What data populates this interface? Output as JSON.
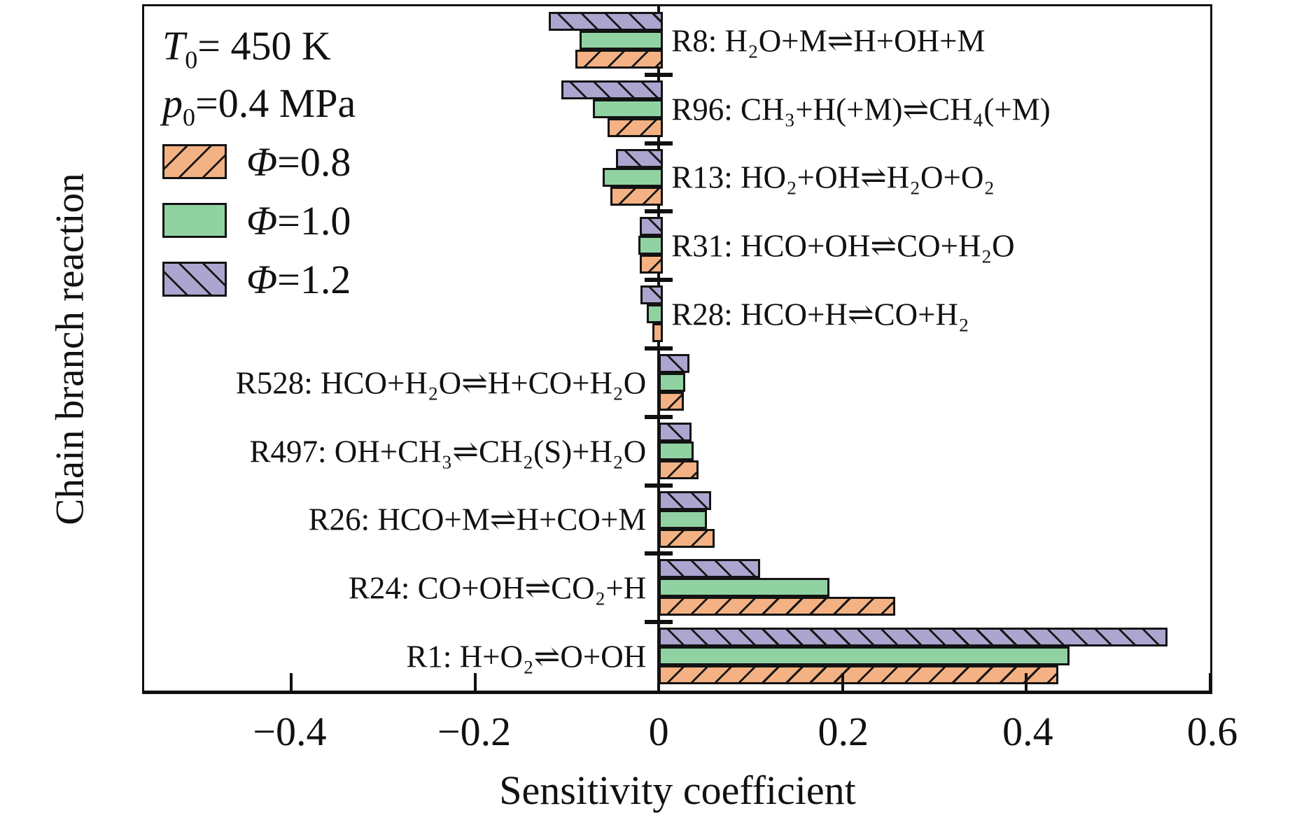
{
  "figure": {
    "background": "#ffffff",
    "frame_color": "#111111"
  },
  "legend": {
    "conditions": [
      {
        "sym": "T",
        "sub": "0",
        "rest": "= 450 K"
      },
      {
        "sym": "p",
        "sub": "0",
        "rest": "=0.4 MPa"
      }
    ]
  },
  "chart_data": {
    "type": "bar",
    "orientation": "horizontal",
    "title": "",
    "xlabel": "Sensitivity coefficient",
    "ylabel": "Chain branch reaction",
    "xlim": [
      -0.56,
      0.6
    ],
    "grid": false,
    "legend_position": "upper-left-inside",
    "zero_line": true,
    "x_axis_ticks": [
      {
        "value": -0.4,
        "label": "−0.4"
      },
      {
        "value": -0.2,
        "label": "−0.2"
      },
      {
        "value": 0,
        "label": "0"
      },
      {
        "value": 0.2,
        "label": "0.2"
      },
      {
        "value": 0.4,
        "label": "0.4"
      },
      {
        "value": 0.6,
        "label": "0.6"
      }
    ],
    "categories": [
      {
        "id": "R8",
        "label": "R8: H₂O+M⇌H+OH+M",
        "label_side": "right"
      },
      {
        "id": "R96",
        "label": "R96: CH₃+H(+M)⇌CH₄(+M)",
        "label_side": "right"
      },
      {
        "id": "R13",
        "label": "R13: HO₂+OH⇌H₂O+O₂",
        "label_side": "right"
      },
      {
        "id": "R31",
        "label": "R31: HCO+OH⇌CO+H₂O",
        "label_side": "right"
      },
      {
        "id": "R28",
        "label": "R28: HCO+H⇌CO+H₂",
        "label_side": "right"
      },
      {
        "id": "R528",
        "label": "R528: HCO+H₂O⇌H+CO+H₂O",
        "label_side": "left"
      },
      {
        "id": "R497",
        "label": "R497: OH+CH₃⇌CH₂(S)+H₂O",
        "label_side": "left"
      },
      {
        "id": "R26",
        "label": "R26: HCO+M⇌H+CO+M",
        "label_side": "left"
      },
      {
        "id": "R24",
        "label": "R24: CO+OH⇌CO₂+H",
        "label_side": "left"
      },
      {
        "id": "R1",
        "label": "R1: H+O₂⇌O+OH",
        "label_side": "left"
      }
    ],
    "series": [
      {
        "phi": "0.8",
        "name_sym": "Φ",
        "name_rest": "=0.8",
        "color": "#F4B183",
        "hatch": "/",
        "values": [
          -0.091,
          -0.056,
          -0.053,
          -0.021,
          -0.007,
          0.023,
          0.039,
          0.056,
          0.253,
          0.43
        ]
      },
      {
        "phi": "1.0",
        "name_sym": "Φ",
        "name_rest": "=1.0",
        "color": "#90D2A2",
        "hatch": "",
        "values": [
          -0.086,
          -0.072,
          -0.061,
          -0.022,
          -0.013,
          0.024,
          0.033,
          0.048,
          0.181,
          0.442
        ]
      },
      {
        "phi": "1.2",
        "name_sym": "Φ",
        "name_rest": "=1.2",
        "color": "#ACA5D0",
        "hatch": "\\",
        "values": [
          -0.12,
          -0.106,
          -0.047,
          -0.021,
          -0.02,
          0.029,
          0.031,
          0.052,
          0.106,
          0.549
        ]
      }
    ],
    "bar_row_order_top_to_bottom": [
      2,
      1,
      0
    ]
  }
}
